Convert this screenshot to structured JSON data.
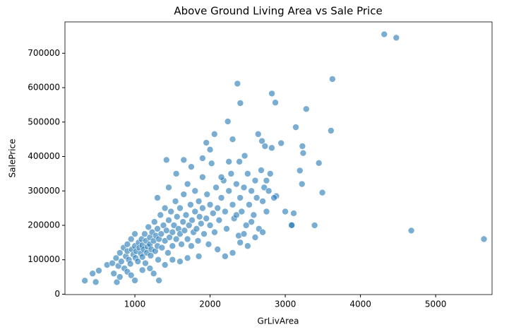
{
  "chart_data": {
    "type": "scatter",
    "title": "Above Ground Living Area vs Sale Price",
    "x_label": "GrLivArea",
    "y_label": "SalePrice",
    "color": "#1f77b4",
    "xlim": [
      70,
      5750
    ],
    "ylim": [
      -1100,
      791000
    ],
    "xticks": [
      1000,
      2000,
      3000,
      4000,
      5000
    ],
    "yticks": [
      0,
      100000,
      200000,
      300000,
      400000,
      500000,
      600000,
      700000
    ],
    "x": [
      4316,
      4476,
      3627,
      2364,
      2402,
      2822,
      2868,
      3279,
      3608,
      3140,
      2236,
      4676,
      5642,
      3493,
      3447,
      3228,
      3238,
      3222,
      3194,
      3082,
      3086,
      3390,
      3112,
      2945,
      2640,
      2690,
      2730,
      2058,
      2300,
      1950,
      1420,
      1650,
      3000,
      2820,
      2880,
      2460,
      2390,
      334,
      438,
      480,
      520,
      630,
      720,
      760,
      800,
      1000,
      1320,
      700,
      750,
      780,
      800,
      820,
      850,
      860,
      880,
      900,
      900,
      920,
      940,
      950,
      960,
      980,
      1000,
      1000,
      1010,
      1020,
      1040,
      1050,
      1060,
      1080,
      1090,
      1100,
      1100,
      1120,
      1130,
      1140,
      1150,
      1160,
      1170,
      1180,
      1200,
      1200,
      1210,
      1220,
      1230,
      1250,
      1260,
      1270,
      1280,
      1300,
      1300,
      1310,
      1320,
      1340,
      1350,
      1360,
      1380,
      1400,
      1400,
      1420,
      1440,
      1450,
      1460,
      1480,
      1500,
      1500,
      1520,
      1540,
      1550,
      1560,
      1580,
      1600,
      1600,
      1620,
      1640,
      1650,
      1660,
      1680,
      1700,
      1700,
      1720,
      1740,
      1750,
      1760,
      1780,
      1800,
      1800,
      1820,
      1840,
      1850,
      1860,
      1880,
      1900,
      1900,
      1920,
      1950,
      1960,
      1980,
      2000,
      2000,
      2020,
      2040,
      2060,
      2080,
      2100,
      2120,
      2150,
      2180,
      2200,
      2220,
      2250,
      2280,
      2300,
      2320,
      2350,
      2380,
      2400,
      2420,
      2450,
      2480,
      2500,
      2520,
      2550,
      2580,
      2600,
      2620,
      2650,
      2680,
      2700,
      2720,
      2750,
      2780,
      2800,
      2100,
      2200,
      2300,
      2400,
      1850,
      1600,
      1700,
      1400,
      1500,
      1200,
      1100,
      900,
      950,
      1250,
      2500,
      2600,
      1300,
      1450,
      1550,
      1750,
      1900,
      2000,
      2150,
      2250,
      2350,
      2450,
      2550,
      2700,
      2750,
      2850
    ],
    "y": [
      755000,
      745000,
      625000,
      611657,
      555000,
      582933,
      556581,
      538000,
      475000,
      485000,
      501837,
      184750,
      160000,
      295000,
      381000,
      430000,
      410000,
      320000,
      359100,
      200000,
      200500,
      200000,
      235000,
      438780,
      465000,
      445000,
      430000,
      465000,
      450000,
      440000,
      390000,
      390000,
      240000,
      425000,
      285000,
      402000,
      385000,
      39300,
      60000,
      35311,
      68400,
      85000,
      60000,
      35000,
      50000,
      40000,
      40000,
      90000,
      105000,
      82000,
      120000,
      95000,
      135000,
      75000,
      110000,
      145000,
      125000,
      100000,
      88000,
      160000,
      130000,
      115000,
      175000,
      140000,
      105000,
      125000,
      95000,
      150000,
      135000,
      118000,
      160000,
      142000,
      108000,
      130000,
      175000,
      90000,
      155000,
      120000,
      138000,
      195000,
      165000,
      145000,
      112000,
      130000,
      180000,
      155000,
      210000,
      125000,
      170000,
      140000,
      190000,
      100000,
      160000,
      230000,
      175000,
      135000,
      200000,
      155000,
      250000,
      185000,
      120000,
      215000,
      165000,
      240000,
      180000,
      140000,
      200000,
      270000,
      160000,
      225000,
      190000,
      175000,
      250000,
      145000,
      210000,
      290000,
      185000,
      230000,
      160000,
      320000,
      200000,
      260000,
      140000,
      215000,
      180000,
      240000,
      300000,
      190000,
      155000,
      270000,
      225000,
      205000,
      250000,
      340000,
      175000,
      220000,
      290000,
      145000,
      260000,
      200000,
      380000,
      235000,
      180000,
      310000,
      250000,
      215000,
      280000,
      330000,
      240000,
      190000,
      300000,
      350000,
      260000,
      220000,
      320000,
      170000,
      280000,
      240000,
      310000,
      200000,
      350000,
      260000,
      300000,
      230000,
      330000,
      280000,
      190000,
      360000,
      270000,
      310000,
      240000,
      300000,
      350000,
      130000,
      110000,
      120000,
      150000,
      110000,
      95000,
      105000,
      85000,
      100000,
      75000,
      70000,
      65000,
      55000,
      60000,
      140000,
      165000,
      280000,
      310000,
      350000,
      370000,
      395000,
      420000,
      340000,
      385000,
      230000,
      175000,
      210000,
      180000,
      330000,
      280000
    ]
  }
}
